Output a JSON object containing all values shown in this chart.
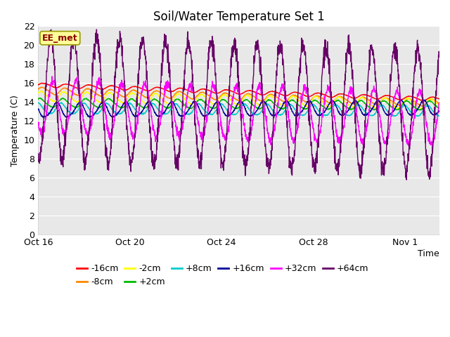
{
  "title": "Soil/Water Temperature Set 1",
  "xlabel": "Time",
  "ylabel": "Temperature (C)",
  "ylim": [
    0,
    22
  ],
  "yticks": [
    0,
    2,
    4,
    6,
    8,
    10,
    12,
    14,
    16,
    18,
    20,
    22
  ],
  "xlim": [
    0,
    17.5
  ],
  "xtick_labels": [
    "Oct 16",
    "Oct 20",
    "Oct 24",
    "Oct 28",
    "Nov 1"
  ],
  "xtick_positions": [
    0,
    4,
    8,
    12,
    16
  ],
  "annotation_text": "EE_met",
  "annotation_color": "#8B0000",
  "annotation_bg": "#FFFF99",
  "annotation_edge": "#999900",
  "bg_color": "#ffffff",
  "plot_bg": "#E8E8E8",
  "grid_color": "#ffffff",
  "series": [
    {
      "label": "-16cm",
      "color": "#FF0000",
      "base": 15.8,
      "end": 14.3,
      "amp": 0.2,
      "phase": 0.0,
      "smooth": 80
    },
    {
      "label": "-8cm",
      "color": "#FF8800",
      "base": 15.2,
      "end": 13.9,
      "amp": 0.35,
      "phase": 0.05,
      "smooth": 60
    },
    {
      "label": "-2cm",
      "color": "#FFFF00",
      "base": 14.6,
      "end": 13.8,
      "amp": 0.5,
      "phase": 0.1,
      "smooth": 40
    },
    {
      "label": "+2cm",
      "color": "#00BB00",
      "base": 13.9,
      "end": 13.6,
      "amp": 0.45,
      "phase": 0.15,
      "smooth": 30
    },
    {
      "label": "+8cm",
      "color": "#00CCCC",
      "base": 13.3,
      "end": 13.0,
      "amp": 0.55,
      "phase": 0.25,
      "smooth": 20
    },
    {
      "label": "+16cm",
      "color": "#000099",
      "base": 13.1,
      "end": 13.35,
      "amp": 0.75,
      "phase": 0.45,
      "smooth": 10
    },
    {
      "label": "+32cm",
      "color": "#FF00FF",
      "base": 13.5,
      "end": 12.3,
      "amp": 2.8,
      "phase": 0.6,
      "smooth": 0
    },
    {
      "label": "+64cm",
      "color": "#660066",
      "base": 14.5,
      "end": 13.0,
      "amp": 6.5,
      "phase": 0.7,
      "smooth": 0
    }
  ],
  "title_fontsize": 12,
  "axis_label_fontsize": 9,
  "tick_fontsize": 9,
  "legend_fontsize": 9,
  "n_points": 2000,
  "duration_days": 17.5
}
